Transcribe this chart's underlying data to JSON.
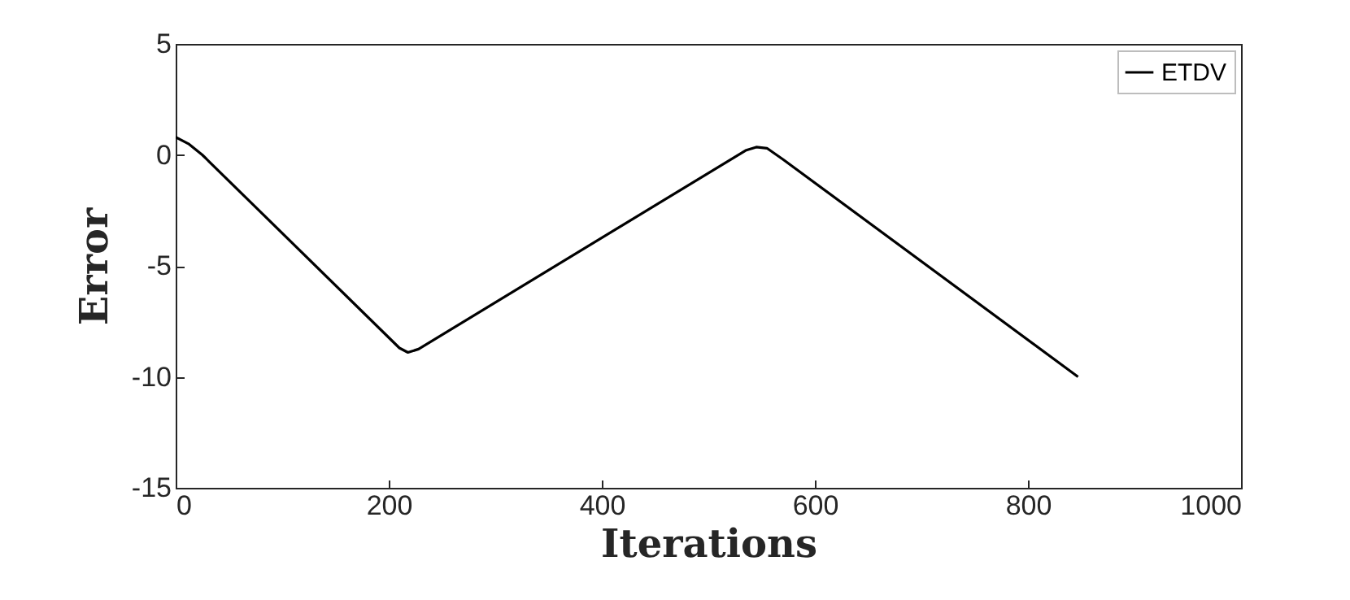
{
  "chart_data": {
    "type": "line",
    "xlabel": "Iterations",
    "ylabel": "Error",
    "x": [
      0,
      12,
      25,
      210,
      218,
      228,
      535,
      545,
      555,
      570,
      847
    ],
    "series": [
      {
        "name": "ETDV",
        "color": "#000000",
        "values": [
          0.8,
          0.5,
          0,
          -8.7,
          -8.9,
          -8.75,
          0.2,
          0.35,
          0.3,
          -0.2,
          -10
        ]
      }
    ],
    "xlim": [
      0,
      1000
    ],
    "xticks": [
      0,
      200,
      400,
      600,
      800,
      1000
    ],
    "ylim": [
      -15,
      5
    ],
    "yticks": [
      -15,
      -10,
      -5,
      0,
      5
    ],
    "grid": false,
    "legend": "top right",
    "line_style": "solid",
    "marker": "none"
  }
}
